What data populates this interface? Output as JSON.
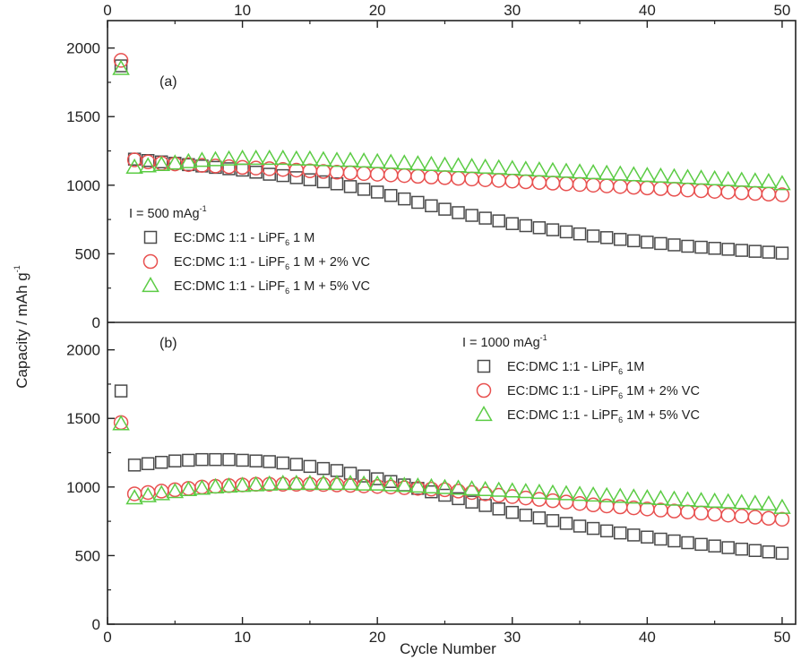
{
  "chart_data": {
    "type": "scatter",
    "xlabel": "Cycle Number",
    "ylabel": "Capacity / mAh g",
    "ylabel_sup": "-1",
    "x_ticks": [
      "0",
      "10",
      "20",
      "30",
      "40",
      "50"
    ],
    "xlim": [
      0,
      51
    ],
    "panels": [
      {
        "label": "(a)",
        "ylim": [
          0,
          2200
        ],
        "y_ticks": [
          "0",
          "500",
          "1000",
          "1500",
          "2000"
        ],
        "legend": {
          "title": "I = 500 mAg",
          "title_sup": "-1",
          "position": "bottom-left"
        },
        "series": [
          {
            "name": "EC:DMC 1:1 - LiPF",
            "name_sub": "6",
            "name_tail": " 1 M",
            "marker": "square",
            "color": "#4a4a4a",
            "x": [
              1,
              2,
              3,
              4,
              5,
              6,
              7,
              8,
              9,
              10,
              11,
              12,
              13,
              14,
              15,
              16,
              17,
              18,
              19,
              20,
              21,
              22,
              23,
              24,
              25,
              26,
              27,
              28,
              29,
              30,
              31,
              32,
              33,
              34,
              35,
              36,
              37,
              38,
              39,
              40,
              41,
              42,
              43,
              44,
              45,
              46,
              47,
              48,
              49,
              50
            ],
            "y": [
              1870,
              1190,
              1180,
              1170,
              1160,
              1150,
              1140,
              1130,
              1120,
              1110,
              1095,
              1080,
              1070,
              1055,
              1040,
              1025,
              1010,
              990,
              970,
              950,
              925,
              900,
              875,
              850,
              825,
              800,
              780,
              760,
              740,
              720,
              705,
              690,
              675,
              660,
              645,
              630,
              618,
              605,
              595,
              585,
              575,
              565,
              555,
              548,
              540,
              533,
              525,
              518,
              512,
              505
            ]
          },
          {
            "name": "EC:DMC 1:1 - LiPF",
            "name_sub": "6",
            "name_tail": " 1 M + 2% VC",
            "marker": "circle",
            "color": "#e8504f",
            "x": [
              1,
              2,
              3,
              4,
              5,
              6,
              7,
              8,
              9,
              10,
              11,
              12,
              13,
              14,
              15,
              16,
              17,
              18,
              19,
              20,
              21,
              22,
              23,
              24,
              25,
              26,
              27,
              28,
              29,
              30,
              31,
              32,
              33,
              34,
              35,
              36,
              37,
              38,
              39,
              40,
              41,
              42,
              43,
              44,
              45,
              46,
              47,
              48,
              49,
              50
            ],
            "y": [
              1910,
              1185,
              1170,
              1160,
              1155,
              1150,
              1145,
              1140,
              1135,
              1130,
              1125,
              1120,
              1115,
              1110,
              1105,
              1100,
              1095,
              1090,
              1085,
              1080,
              1075,
              1070,
              1065,
              1060,
              1055,
              1050,
              1045,
              1040,
              1035,
              1030,
              1025,
              1020,
              1015,
              1010,
              1005,
              1000,
              995,
              990,
              985,
              980,
              975,
              970,
              965,
              960,
              955,
              950,
              945,
              940,
              935,
              930
            ]
          },
          {
            "name": "EC:DMC 1:1 - LiPF",
            "name_sub": "6",
            "name_tail": " 1 M + 5% VC",
            "marker": "triangle",
            "color": "#5ccc45",
            "x": [
              1,
              2,
              3,
              4,
              5,
              6,
              7,
              8,
              9,
              10,
              11,
              12,
              13,
              14,
              15,
              16,
              17,
              18,
              19,
              20,
              21,
              22,
              23,
              24,
              25,
              26,
              27,
              28,
              29,
              30,
              31,
              32,
              33,
              34,
              35,
              36,
              37,
              38,
              39,
              40,
              41,
              42,
              43,
              44,
              45,
              46,
              47,
              48,
              49,
              50
            ],
            "y": [
              1850,
              1130,
              1140,
              1150,
              1160,
              1170,
              1180,
              1185,
              1190,
              1195,
              1195,
              1195,
              1195,
              1190,
              1190,
              1185,
              1180,
              1180,
              1175,
              1170,
              1165,
              1160,
              1155,
              1150,
              1145,
              1140,
              1135,
              1130,
              1125,
              1120,
              1115,
              1110,
              1105,
              1100,
              1095,
              1090,
              1085,
              1080,
              1075,
              1070,
              1065,
              1060,
              1055,
              1050,
              1045,
              1040,
              1035,
              1030,
              1025,
              1010
            ]
          }
        ]
      },
      {
        "label": "(b)",
        "ylim": [
          0,
          2200
        ],
        "y_ticks": [
          "0",
          "500",
          "1000",
          "1500",
          "2000"
        ],
        "legend": {
          "title": "I = 1000 mAg",
          "title_sup": "-1",
          "position": "top-right"
        },
        "series": [
          {
            "name": "EC:DMC 1:1 - LiPF",
            "name_sub": "6",
            "name_tail": " 1M",
            "marker": "square",
            "color": "#4a4a4a",
            "x": [
              1,
              2,
              3,
              4,
              5,
              6,
              7,
              8,
              9,
              10,
              11,
              12,
              13,
              14,
              15,
              16,
              17,
              18,
              19,
              20,
              21,
              22,
              23,
              24,
              25,
              26,
              27,
              28,
              29,
              30,
              31,
              32,
              33,
              34,
              35,
              36,
              37,
              38,
              39,
              40,
              41,
              42,
              43,
              44,
              45,
              46,
              47,
              48,
              49,
              50
            ],
            "y": [
              1700,
              1160,
              1170,
              1180,
              1190,
              1195,
              1200,
              1200,
              1200,
              1195,
              1190,
              1185,
              1175,
              1165,
              1150,
              1135,
              1120,
              1100,
              1080,
              1060,
              1040,
              1015,
              990,
              965,
              940,
              915,
              890,
              865,
              840,
              815,
              795,
              775,
              755,
              735,
              715,
              698,
              680,
              665,
              650,
              635,
              620,
              607,
              594,
              582,
              570,
              558,
              547,
              537,
              527,
              517
            ]
          },
          {
            "name": "EC:DMC 1:1 - LiPF",
            "name_sub": "6",
            "name_tail": " 1M + 2% VC",
            "marker": "circle",
            "color": "#e8504f",
            "x": [
              1,
              2,
              3,
              4,
              5,
              6,
              7,
              8,
              9,
              10,
              11,
              12,
              13,
              14,
              15,
              16,
              17,
              18,
              19,
              20,
              21,
              22,
              23,
              24,
              25,
              26,
              27,
              28,
              29,
              30,
              31,
              32,
              33,
              34,
              35,
              36,
              37,
              38,
              39,
              40,
              41,
              42,
              43,
              44,
              45,
              46,
              47,
              48,
              49,
              50
            ],
            "y": [
              1470,
              950,
              960,
              970,
              980,
              990,
              1000,
              1005,
              1010,
              1015,
              1020,
              1020,
              1020,
              1020,
              1020,
              1018,
              1015,
              1012,
              1008,
              1004,
              1000,
              995,
              990,
              985,
              980,
              970,
              960,
              950,
              940,
              930,
              920,
              910,
              900,
              890,
              880,
              870,
              862,
              855,
              848,
              840,
              832,
              825,
              818,
              810,
              802,
              795,
              788,
              780,
              772,
              765
            ]
          },
          {
            "name": "EC:DMC 1:1 - LiPF",
            "name_sub": "6",
            "name_tail": " 1M + 5% VC",
            "marker": "triangle",
            "color": "#5ccc45",
            "x": [
              1,
              2,
              3,
              4,
              5,
              6,
              7,
              8,
              9,
              10,
              11,
              12,
              13,
              14,
              15,
              16,
              17,
              18,
              19,
              20,
              21,
              22,
              23,
              24,
              25,
              26,
              27,
              28,
              29,
              30,
              31,
              32,
              33,
              34,
              35,
              36,
              37,
              38,
              39,
              40,
              41,
              42,
              43,
              44,
              45,
              46,
              47,
              48,
              49,
              50
            ],
            "y": [
              1460,
              920,
              935,
              950,
              965,
              980,
              990,
              1000,
              1005,
              1010,
              1015,
              1020,
              1025,
              1025,
              1025,
              1025,
              1025,
              1025,
              1020,
              1020,
              1015,
              1010,
              1005,
              1000,
              995,
              990,
              985,
              980,
              975,
              970,
              965,
              960,
              955,
              950,
              945,
              940,
              935,
              930,
              925,
              920,
              915,
              910,
              905,
              900,
              895,
              890,
              885,
              880,
              875,
              850
            ]
          }
        ]
      }
    ]
  }
}
